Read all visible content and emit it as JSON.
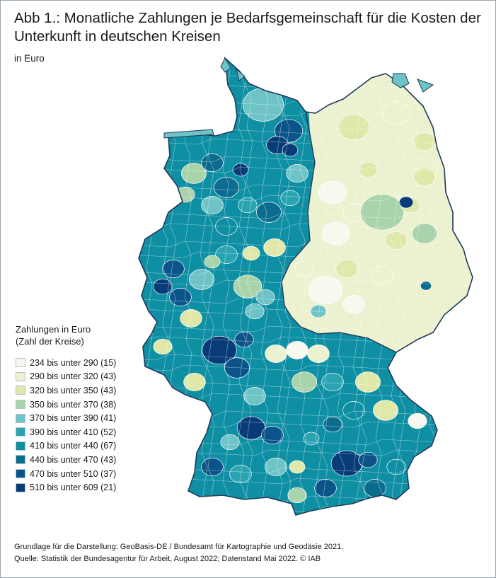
{
  "title": "Abb 1.: Monatliche Zahlungen je Bedarfsgemeinschaft für die Kosten der Unterkunft in deutschen Kreisen",
  "subtitle": "in Euro",
  "legend": {
    "title_line1": "Zahlungen in Euro",
    "title_line2": "(Zahl der Kreise)",
    "items": [
      {
        "label": "234 bis unter 290 (15)",
        "color": "#f7f9ef"
      },
      {
        "label": "290 bis unter 320 (43)",
        "color": "#ecf1cf"
      },
      {
        "label": "320 bis unter 350 (43)",
        "color": "#dfe8a8"
      },
      {
        "label": "350 bis unter 370 (38)",
        "color": "#a9d3ab"
      },
      {
        "label": "370 bis unter 390 (41)",
        "color": "#6ec3c6"
      },
      {
        "label": "390 bis unter 410 (52)",
        "color": "#2ba4b2"
      },
      {
        "label": "410 bis unter 440 (67)",
        "color": "#0f8fa3"
      },
      {
        "label": "440 bis unter 470 (43)",
        "color": "#0b6c8f"
      },
      {
        "label": "470 bis unter 510 (37)",
        "color": "#0b5489"
      },
      {
        "label": "510 bis unter 609 (21)",
        "color": "#083c78"
      }
    ]
  },
  "footer": {
    "line1": "Grundlage für die Darstellung: GeoBasis-DE / Bundesamt für Kartographie und Geodäsie 2021.",
    "line2": "Quelle: Statistik der Bundesagentur für Arbeit, August 2022; Datenstand Mai 2022. © IAB"
  },
  "map": {
    "colors": {
      "c1": "#f7f9ef",
      "c2": "#ecf1cf",
      "c3": "#dfe8a8",
      "c4": "#a9d3ab",
      "c5": "#6ec3c6",
      "c6": "#2ba4b2",
      "c7": "#0f8fa3",
      "c8": "#0b6c8f",
      "c9": "#0b5489",
      "c10": "#083c78",
      "border": "#1f3a5a",
      "inner": "#ffffff"
    }
  }
}
